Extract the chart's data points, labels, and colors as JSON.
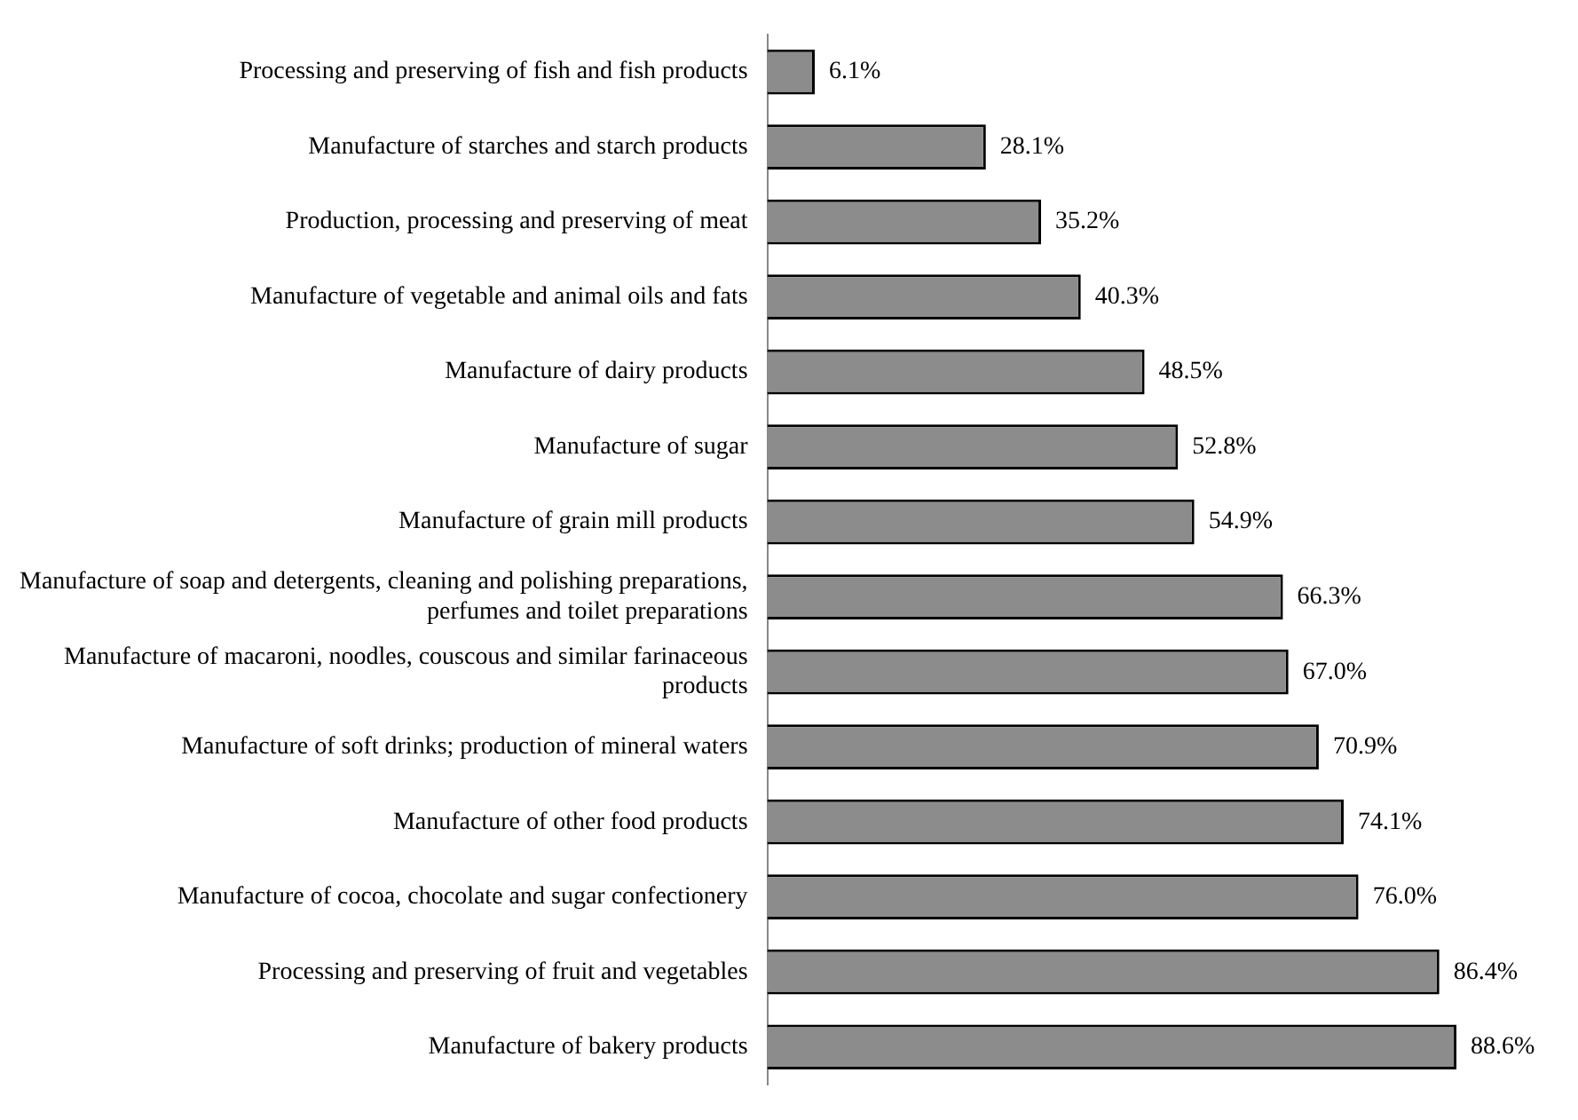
{
  "chart_data": {
    "type": "bar",
    "orientation": "horizontal",
    "categories": [
      "Processing and preserving of fish and fish products",
      "Manufacture of starches and starch products",
      "Production, processing and preserving of meat",
      "Manufacture of vegetable and animal oils and fats",
      "Manufacture of dairy products",
      "Manufacture of sugar",
      "Manufacture of grain mill products",
      "Manufacture of soap and detergents, cleaning and polishing preparations, perfumes and toilet preparations",
      "Manufacture of macaroni, noodles, couscous and similar farinaceous products",
      "Manufacture of soft drinks; production of mineral waters",
      "Manufacture of other food products",
      "Manufacture of cocoa, chocolate and sugar confectionery",
      "Processing and preserving of fruit and vegetables",
      "Manufacture of bakery products"
    ],
    "values": [
      6.1,
      28.1,
      35.2,
      40.3,
      48.5,
      52.8,
      54.9,
      66.3,
      67.0,
      70.9,
      74.1,
      76.0,
      86.4,
      88.6
    ],
    "value_labels": [
      "6.1%",
      "28.1%",
      "35.2%",
      "40.3%",
      "48.5%",
      "52.8%",
      "54.9%",
      "66.3%",
      "67.0%",
      "70.9%",
      "74.1%",
      "76.0%",
      "86.4%",
      "88.6%"
    ],
    "color": "#8c8c8c",
    "relative": false,
    "grid": false,
    "legend": false
  }
}
